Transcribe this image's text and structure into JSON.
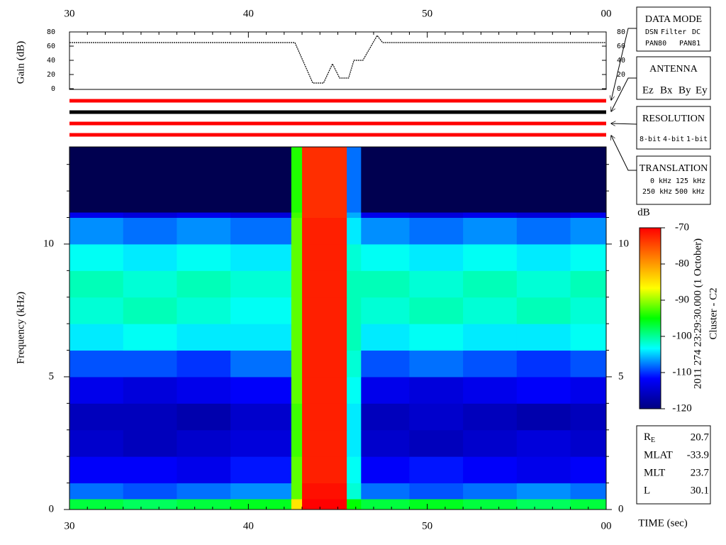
{
  "chart_data": [
    {
      "type": "line",
      "ylabel": "Gain (dB)",
      "xlim": [
        30,
        60
      ],
      "xticks": [
        30,
        40,
        50,
        {
          "value": 60,
          "label": "00"
        }
      ],
      "xticks_minor": [
        31,
        32,
        33,
        34,
        35,
        36,
        37,
        38,
        39,
        41,
        42,
        43,
        44,
        45,
        46,
        47,
        48,
        49,
        51,
        52,
        53,
        54,
        55,
        56,
        57,
        58,
        59
      ],
      "ylim": [
        0,
        80
      ],
      "yticks": [
        0,
        20,
        40,
        60,
        80
      ],
      "x": [
        30,
        42.6,
        43.6,
        44.2,
        44.7,
        45.1,
        45.6,
        45.9,
        46.4,
        47.2,
        47.5,
        60
      ],
      "values": [
        65,
        65,
        8,
        8,
        35,
        15,
        15,
        40,
        40,
        75,
        65,
        65
      ],
      "color": "#000000"
    },
    {
      "type": "heatmap",
      "ylabel": "Frequency (kHz)",
      "xlabel": "TIME (sec)",
      "xlim": [
        30,
        60
      ],
      "xticks": [
        30,
        40,
        50,
        {
          "value": 60,
          "label": "00"
        }
      ],
      "xticks_minor": [
        31,
        32,
        33,
        34,
        35,
        36,
        37,
        38,
        39,
        41,
        42,
        43,
        44,
        45,
        46,
        47,
        48,
        49,
        51,
        52,
        53,
        54,
        55,
        56,
        57,
        58,
        59
      ],
      "ylim": [
        0,
        13.66
      ],
      "yticks": [
        0,
        5,
        10
      ],
      "yticks_minor": [
        1,
        2,
        3,
        4,
        6,
        7,
        8,
        9,
        11,
        12,
        13
      ],
      "x_bins": [
        30,
        33,
        36,
        39,
        42.4,
        43.0,
        45.5,
        46.3,
        49,
        52,
        55,
        58,
        60
      ],
      "y_bins": [
        0,
        0.4,
        1,
        2,
        3,
        4,
        5,
        6,
        7,
        8,
        9,
        10,
        11,
        11.2,
        13.66
      ],
      "values": [
        [
          -97,
          -98,
          -97,
          -96,
          -85,
          -70,
          -95,
          -97,
          -96,
          -97,
          -98,
          -97
        ],
        [
          -108,
          -109,
          -108,
          -107,
          -92,
          -71,
          -102,
          -108,
          -109,
          -108,
          -107,
          -108
        ],
        [
          -112,
          -112,
          -113,
          -111,
          -92,
          -72,
          -103,
          -112,
          -111,
          -112,
          -113,
          -112
        ],
        [
          -115,
          -116,
          -115,
          -114,
          -93,
          -72,
          -104,
          -115,
          -116,
          -115,
          -114,
          -115
        ],
        [
          -116,
          -116,
          -117,
          -115,
          -93,
          -72,
          -104,
          -116,
          -115,
          -116,
          -117,
          -116
        ],
        [
          -113,
          -114,
          -113,
          -112,
          -92,
          -72,
          -103,
          -113,
          -114,
          -113,
          -112,
          -113
        ],
        [
          -109,
          -109,
          -110,
          -108,
          -92,
          -72,
          -102,
          -109,
          -108,
          -109,
          -110,
          -109
        ],
        [
          -104,
          -103,
          -104,
          -104,
          -92,
          -72,
          -101,
          -104,
          -103,
          -104,
          -104,
          -103
        ],
        [
          -102,
          -101,
          -102,
          -103,
          -92,
          -72,
          -101,
          -102,
          -101,
          -102,
          -101,
          -102
        ],
        [
          -101,
          -102,
          -101,
          -102,
          -92,
          -72,
          -101,
          -101,
          -102,
          -101,
          -102,
          -101
        ],
        [
          -103,
          -104,
          -103,
          -104,
          -92,
          -72,
          -102,
          -103,
          -104,
          -103,
          -104,
          -103
        ],
        [
          -107,
          -108,
          -107,
          -108,
          -92,
          -72,
          -104,
          -107,
          -108,
          -107,
          -108,
          -107
        ],
        [
          -113,
          -114,
          -113,
          -114,
          -93,
          -73,
          -106,
          -113,
          -114,
          -113,
          -114,
          -113
        ],
        [
          -126,
          -126,
          -126,
          -126,
          -94,
          -73,
          -108,
          -126,
          -126,
          -126,
          -126,
          -126
        ]
      ],
      "clim": [
        -120,
        -70
      ],
      "colormap": [
        "#00007f",
        "#0000ff",
        "#00ffff",
        "#00ff00",
        "#ffff00",
        "#ff8000",
        "#ff0000"
      ],
      "under_color": "#000050"
    },
    {
      "type": "colorbar",
      "title": "dB",
      "ylim": [
        -120,
        -70
      ],
      "yticks": [
        -120,
        -110,
        -100,
        -90,
        -80,
        -70
      ],
      "colormap": [
        "#00007f",
        "#0000ff",
        "#00ffff",
        "#00ff00",
        "#ffff00",
        "#ff8000",
        "#ff0000"
      ]
    }
  ],
  "status_lines": [
    "#ff0000",
    "#000000",
    "#ff0000",
    "#ff0000"
  ],
  "panels": {
    "data_mode": {
      "title": "DATA MODE",
      "items": [
        {
          "text": "DSN",
          "color": "#ff0000"
        },
        {
          "text": "Filter",
          "color": "#00dd00"
        },
        {
          "text": "DC",
          "color": "#0000ff"
        },
        {
          "text": "PAN80",
          "color": "#000000"
        },
        {
          "text": "PAN81",
          "color": "#00cccc"
        }
      ]
    },
    "antenna": {
      "title": "ANTENNA",
      "items": [
        {
          "text": "Ez",
          "color": "#ff0000"
        },
        {
          "text": "Bx",
          "color": "#00cc00"
        },
        {
          "text": "By",
          "color": "#0000ff"
        },
        {
          "text": "Ey",
          "color": "#000000"
        }
      ]
    },
    "resolution": {
      "title": "RESOLUTION",
      "items": [
        {
          "text": "8-bit",
          "color": "#ff0000"
        },
        {
          "text": "4-bit",
          "color": "#00cc00"
        },
        {
          "text": "1-bit",
          "color": "#0000ff"
        }
      ]
    },
    "translation": {
      "title": "TRANSLATION",
      "items": [
        {
          "text": "0 kHz",
          "color": "#ff0000"
        },
        {
          "text": "125 kHz",
          "color": "#00cc00"
        },
        {
          "text": "250 kHz",
          "color": "#0000ff"
        },
        {
          "text": "500 kHz",
          "color": "#000000"
        }
      ]
    }
  },
  "info": {
    "rows": [
      {
        "label": "R",
        "sub": "E",
        "value": 20.7
      },
      {
        "label": "MLAT",
        "value": -33.9
      },
      {
        "label": "MLT",
        "value": 23.7
      },
      {
        "label": "L",
        "value": 30.1
      }
    ]
  },
  "timestamp": "2011 274 23:29:30.000 (1 October)",
  "spacecraft": "Cluster - C2"
}
